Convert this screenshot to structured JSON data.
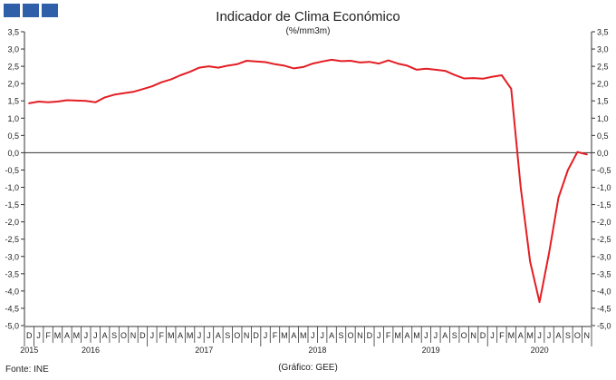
{
  "header": {
    "title": "Indicador de Clima Económico",
    "subtitle": "(%/mm3m)"
  },
  "footer": {
    "source": "Fonte: INE",
    "credit": "(Gráfico: GEE)"
  },
  "colors": {
    "line": "#e31e24",
    "logo": "#2e5fa8",
    "axis": "#333333"
  },
  "chart_data": {
    "type": "line",
    "title": "Indicador de Clima Económico",
    "subtitle": "(%/mm3m)",
    "ylim": [
      -5.0,
      3.5
    ],
    "ystep": 0.5,
    "y_tick_labels": [
      "3,5",
      "3,0",
      "2,5",
      "2,0",
      "1,5",
      "1,0",
      "0,5",
      "0,0",
      "-0,5",
      "-1,0",
      "-1,5",
      "-2,0",
      "-2,5",
      "-3,0",
      "-3,5",
      "-4,0",
      "-4,5",
      "-5,0"
    ],
    "y_axis_both_sides": true,
    "grid": false,
    "month_labels": [
      "D",
      "J",
      "F",
      "M",
      "A",
      "M",
      "J",
      "J",
      "A",
      "S",
      "O",
      "N",
      "D",
      "J",
      "F",
      "M",
      "A",
      "M",
      "J",
      "J",
      "A",
      "S",
      "O",
      "N",
      "D",
      "J",
      "F",
      "M",
      "A",
      "M",
      "J",
      "J",
      "A",
      "S",
      "O",
      "N",
      "D",
      "J",
      "F",
      "M",
      "A",
      "M",
      "J",
      "J",
      "A",
      "S",
      "O",
      "N",
      "D",
      "J",
      "F",
      "M",
      "A",
      "M",
      "J",
      "J",
      "A",
      "S",
      "O",
      "N"
    ],
    "year_labels": [
      "2015",
      "2016",
      "2017",
      "2018",
      "2019",
      "2020"
    ],
    "series": [
      {
        "values": [
          1.43,
          1.48,
          1.46,
          1.48,
          1.52,
          1.51,
          1.5,
          1.46,
          1.6,
          1.68,
          1.72,
          1.76,
          1.84,
          1.92,
          2.04,
          2.12,
          2.24,
          2.34,
          2.46,
          2.5,
          2.46,
          2.52,
          2.56,
          2.66,
          2.64,
          2.62,
          2.56,
          2.52,
          2.44,
          2.48,
          2.58,
          2.64,
          2.69,
          2.65,
          2.66,
          2.61,
          2.63,
          2.58,
          2.67,
          2.58,
          2.52,
          2.4,
          2.43,
          2.4,
          2.37,
          2.25,
          2.15,
          2.16,
          2.14,
          2.2,
          2.24,
          1.85,
          -1.0,
          -3.15,
          -4.32,
          -2.9,
          -1.3,
          -0.5,
          0.02,
          -0.05
        ]
      }
    ]
  }
}
